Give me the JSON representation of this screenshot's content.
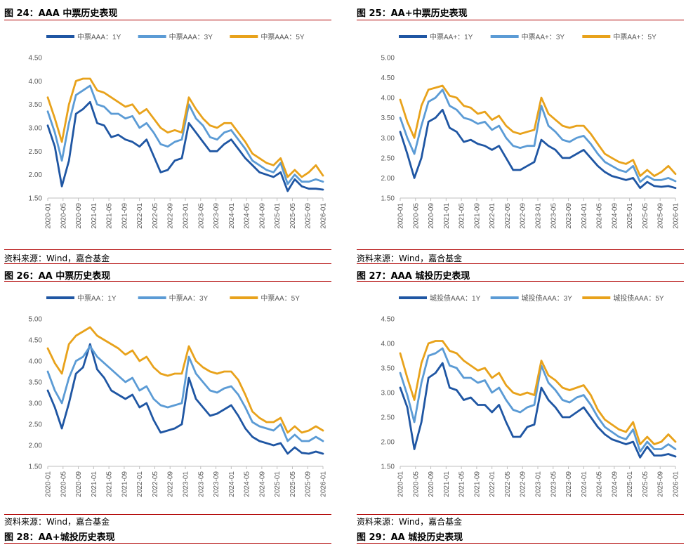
{
  "colors": {
    "dark": "#1f56a3",
    "mid": "#5b9bd5",
    "gold": "#e8a21b",
    "rule": "#b00000",
    "axis": "#bfbfbf",
    "label": "#595959"
  },
  "x_ticks": [
    "2020-01",
    "2020-05",
    "2020-09",
    "2021-01",
    "2021-05",
    "2021-09",
    "2022-01",
    "2022-05",
    "2022-09",
    "2023-01",
    "2023-05",
    "2023-09",
    "2024-01",
    "2024-05",
    "2024-09",
    "2025-01",
    "2025-05",
    "2025-09",
    "2026-01"
  ],
  "panels": [
    {
      "title": "图 24：AAA 中票历史表现",
      "source": "资料来源：Wind，嘉合基金",
      "chart_data": {
        "type": "line",
        "title": "AAA 中票历史表现",
        "y_ticks": [
          "4.50",
          "4.00",
          "3.50",
          "3.00",
          "2.50",
          "2.00",
          "1.50"
        ],
        "ylim": [
          1.5,
          4.5
        ],
        "legend_position": "top",
        "series": [
          {
            "name": "中票AAA：1Y",
            "values": [
              3.05,
              2.6,
              1.75,
              2.3,
              3.3,
              3.4,
              3.55,
              3.1,
              3.05,
              2.8,
              2.85,
              2.75,
              2.7,
              2.6,
              2.75,
              2.4,
              2.05,
              2.1,
              2.3,
              2.35,
              3.1,
              2.9,
              2.7,
              2.5,
              2.5,
              2.65,
              2.75,
              2.55,
              2.35,
              2.2,
              2.05,
              2.0,
              1.95,
              2.05,
              1.65,
              1.9,
              1.75,
              1.7,
              1.7,
              1.68
            ]
          },
          {
            "name": "中票AAA：3Y",
            "values": [
              3.35,
              2.9,
              2.3,
              3.1,
              3.7,
              3.8,
              3.9,
              3.5,
              3.45,
              3.3,
              3.3,
              3.2,
              3.25,
              3.0,
              3.1,
              2.9,
              2.65,
              2.6,
              2.7,
              2.75,
              3.5,
              3.2,
              3.05,
              2.8,
              2.75,
              2.9,
              2.95,
              2.75,
              2.55,
              2.3,
              2.2,
              2.1,
              2.05,
              2.25,
              1.8,
              2.0,
              1.85,
              1.85,
              1.9,
              1.85
            ]
          },
          {
            "name": "中票AAA：5Y",
            "values": [
              3.65,
              3.2,
              2.7,
              3.5,
              4.0,
              4.05,
              4.05,
              3.8,
              3.75,
              3.65,
              3.55,
              3.45,
              3.5,
              3.3,
              3.4,
              3.2,
              3.0,
              2.9,
              2.95,
              2.9,
              3.65,
              3.4,
              3.2,
              3.05,
              3.0,
              3.1,
              3.1,
              2.9,
              2.7,
              2.45,
              2.35,
              2.25,
              2.2,
              2.35,
              1.95,
              2.1,
              1.95,
              2.05,
              2.2,
              1.98
            ]
          }
        ]
      }
    },
    {
      "title": "图 25：AA+中票历史表现",
      "source": "资料来源：Wind，嘉合基金",
      "chart_data": {
        "type": "line",
        "title": "AA+中票历史表现",
        "y_ticks": [
          "5.00",
          "4.50",
          "4.00",
          "3.50",
          "3.00",
          "2.50",
          "2.00",
          "1.50"
        ],
        "ylim": [
          1.5,
          5.0
        ],
        "legend_position": "top",
        "series": [
          {
            "name": "中票AA+：1Y",
            "values": [
              3.15,
              2.6,
              2.0,
              2.5,
              3.4,
              3.5,
              3.7,
              3.25,
              3.15,
              2.9,
              2.95,
              2.85,
              2.8,
              2.7,
              2.8,
              2.5,
              2.2,
              2.2,
              2.3,
              2.4,
              2.95,
              2.8,
              2.7,
              2.5,
              2.5,
              2.6,
              2.7,
              2.5,
              2.3,
              2.15,
              2.05,
              2.0,
              1.95,
              2.0,
              1.75,
              1.9,
              1.8,
              1.78,
              1.8,
              1.75
            ]
          },
          {
            "name": "中票AA+：3Y",
            "values": [
              3.5,
              3.0,
              2.6,
              3.3,
              3.9,
              4.0,
              4.2,
              3.8,
              3.7,
              3.5,
              3.45,
              3.35,
              3.4,
              3.2,
              3.3,
              3.0,
              2.8,
              2.75,
              2.8,
              2.8,
              3.8,
              3.3,
              3.15,
              2.95,
              2.9,
              3.0,
              3.05,
              2.85,
              2.6,
              2.4,
              2.3,
              2.2,
              2.15,
              2.3,
              1.9,
              2.05,
              1.95,
              1.95,
              2.0,
              1.92
            ]
          },
          {
            "name": "中票AA+：5Y",
            "values": [
              3.95,
              3.4,
              3.0,
              3.8,
              4.2,
              4.25,
              4.3,
              4.05,
              4.0,
              3.8,
              3.75,
              3.6,
              3.65,
              3.45,
              3.55,
              3.3,
              3.15,
              3.1,
              3.15,
              3.2,
              4.0,
              3.6,
              3.45,
              3.3,
              3.25,
              3.3,
              3.3,
              3.1,
              2.85,
              2.6,
              2.5,
              2.4,
              2.35,
              2.45,
              2.05,
              2.2,
              2.05,
              2.15,
              2.3,
              2.1
            ]
          }
        ]
      }
    },
    {
      "title": "图 26：AA 中票历史表现",
      "source": "资料来源：Wind，嘉合基金",
      "chart_data": {
        "type": "line",
        "title": "AA 中票历史表现",
        "y_ticks": [
          "5.00",
          "4.50",
          "4.00",
          "3.50",
          "3.00",
          "2.50",
          "2.00",
          "1.50"
        ],
        "ylim": [
          1.5,
          5.0
        ],
        "legend_position": "top",
        "series": [
          {
            "name": "中票AA：1Y",
            "values": [
              3.3,
              2.9,
              2.4,
              3.0,
              3.7,
              3.85,
              4.4,
              3.8,
              3.6,
              3.3,
              3.2,
              3.1,
              3.2,
              2.9,
              3.0,
              2.6,
              2.3,
              2.35,
              2.4,
              2.5,
              3.6,
              3.1,
              2.9,
              2.7,
              2.75,
              2.85,
              2.95,
              2.7,
              2.4,
              2.2,
              2.1,
              2.05,
              2.0,
              2.05,
              1.8,
              1.95,
              1.82,
              1.8,
              1.85,
              1.8
            ]
          },
          {
            "name": "中票AA：3Y",
            "values": [
              3.75,
              3.3,
              3.0,
              3.6,
              4.0,
              4.1,
              4.35,
              4.1,
              3.95,
              3.8,
              3.65,
              3.5,
              3.6,
              3.3,
              3.4,
              3.1,
              2.95,
              2.9,
              2.95,
              3.0,
              4.1,
              3.7,
              3.5,
              3.3,
              3.25,
              3.35,
              3.4,
              3.2,
              2.9,
              2.55,
              2.45,
              2.4,
              2.35,
              2.5,
              2.1,
              2.25,
              2.1,
              2.1,
              2.2,
              2.1
            ]
          },
          {
            "name": "中票AA：5Y",
            "values": [
              4.3,
              3.95,
              3.7,
              4.4,
              4.6,
              4.7,
              4.8,
              4.6,
              4.5,
              4.4,
              4.3,
              4.15,
              4.25,
              4.0,
              4.1,
              3.85,
              3.7,
              3.65,
              3.7,
              3.7,
              4.35,
              4.0,
              3.85,
              3.75,
              3.7,
              3.75,
              3.75,
              3.55,
              3.2,
              2.8,
              2.65,
              2.55,
              2.55,
              2.65,
              2.3,
              2.45,
              2.3,
              2.35,
              2.45,
              2.35
            ]
          }
        ]
      }
    },
    {
      "title": "图 27：AAA 城投历史表现",
      "source": "资料来源：Wind，嘉合基金",
      "chart_data": {
        "type": "line",
        "title": "AAA 城投历史表现",
        "y_ticks": [
          "4.50",
          "4.00",
          "3.50",
          "3.00",
          "2.50",
          "2.00",
          "1.50"
        ],
        "ylim": [
          1.5,
          4.5
        ],
        "legend_position": "top",
        "series": [
          {
            "name": "城投债AAA：1Y",
            "values": [
              3.1,
              2.7,
              1.85,
              2.4,
              3.3,
              3.4,
              3.6,
              3.1,
              3.05,
              2.85,
              2.9,
              2.75,
              2.75,
              2.6,
              2.75,
              2.4,
              2.1,
              2.1,
              2.3,
              2.35,
              3.1,
              2.85,
              2.7,
              2.5,
              2.5,
              2.6,
              2.7,
              2.5,
              2.3,
              2.15,
              2.05,
              2.0,
              1.95,
              2.0,
              1.68,
              1.9,
              1.72,
              1.72,
              1.75,
              1.7
            ]
          },
          {
            "name": "城投债AAA：3Y",
            "values": [
              3.4,
              2.95,
              2.4,
              3.2,
              3.75,
              3.8,
              3.9,
              3.55,
              3.5,
              3.3,
              3.3,
              3.2,
              3.25,
              3.0,
              3.1,
              2.85,
              2.65,
              2.6,
              2.7,
              2.75,
              3.55,
              3.2,
              3.05,
              2.85,
              2.8,
              2.9,
              2.95,
              2.75,
              2.5,
              2.3,
              2.2,
              2.1,
              2.05,
              2.25,
              1.8,
              2.0,
              1.85,
              1.85,
              1.95,
              1.85
            ]
          },
          {
            "name": "城投债AAA：5Y",
            "values": [
              3.8,
              3.3,
              2.85,
              3.6,
              4.0,
              4.05,
              4.05,
              3.85,
              3.8,
              3.65,
              3.55,
              3.45,
              3.5,
              3.3,
              3.4,
              3.15,
              3.0,
              2.95,
              3.0,
              2.95,
              3.65,
              3.35,
              3.25,
              3.1,
              3.05,
              3.1,
              3.15,
              2.95,
              2.65,
              2.45,
              2.35,
              2.25,
              2.2,
              2.4,
              1.95,
              2.1,
              1.95,
              2.0,
              2.15,
              2.0
            ]
          }
        ]
      }
    }
  ]
}
